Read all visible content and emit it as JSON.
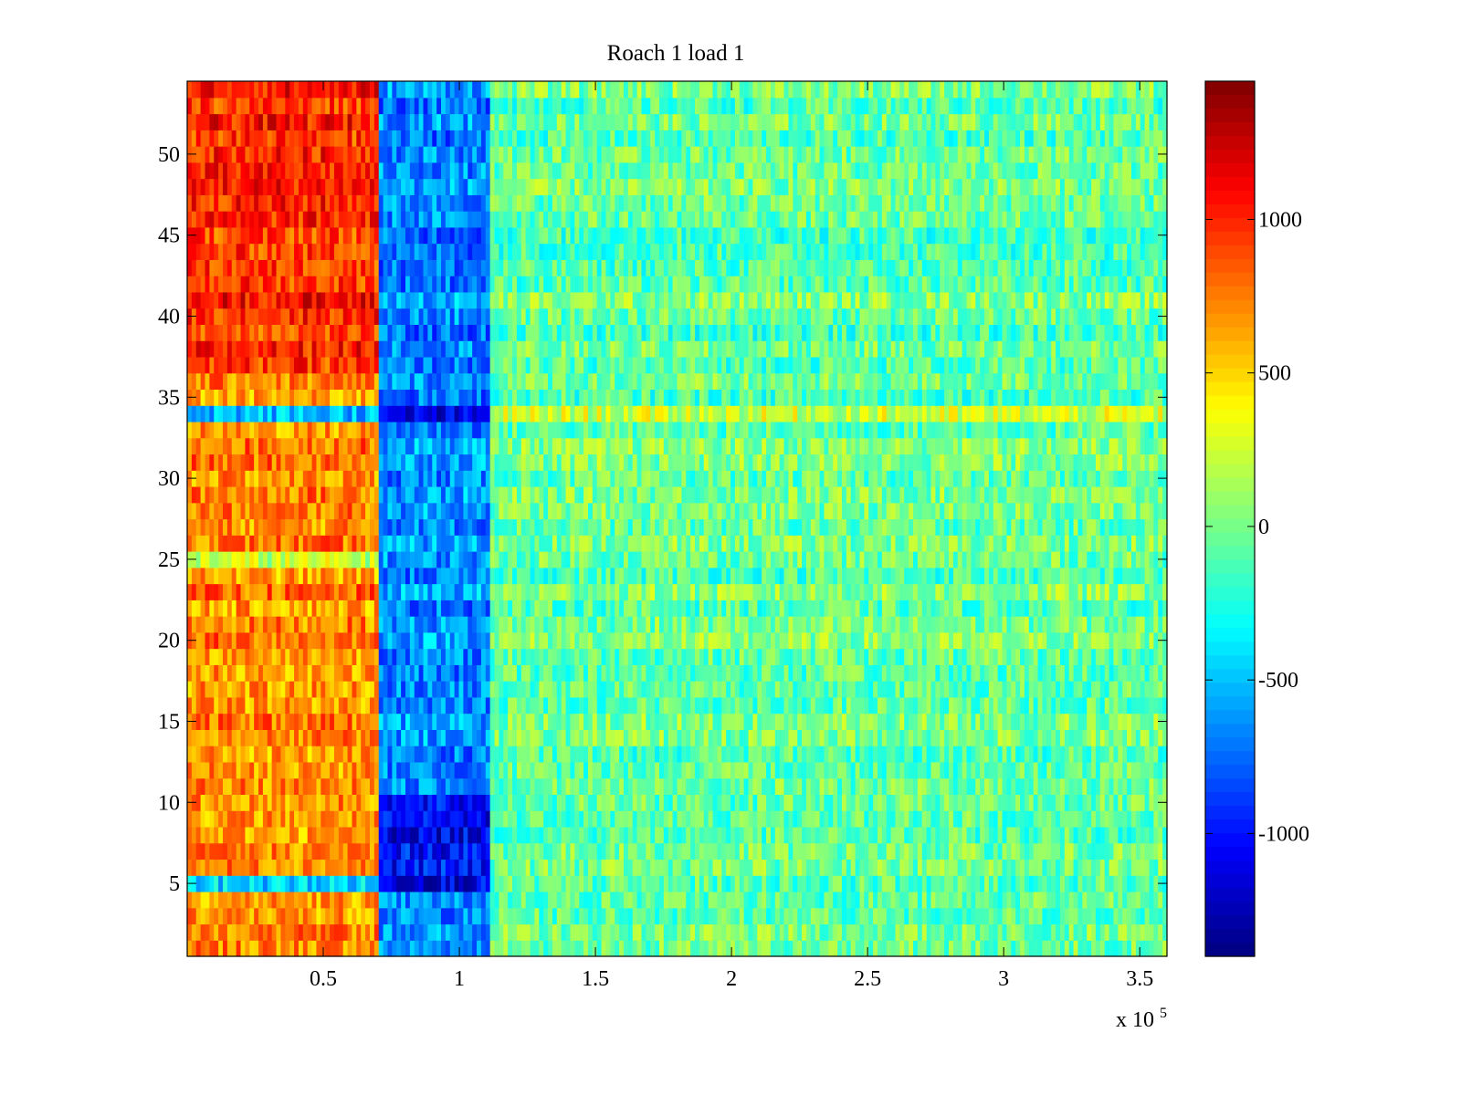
{
  "chart_data": {
    "type": "heatmap",
    "title": "Roach 1 load 1",
    "xlabel": "",
    "ylabel": "",
    "x_exponent_label": {
      "base": "x 10",
      "exponent": "5"
    },
    "xlim": [
      0,
      3.6
    ],
    "ylim": [
      0.5,
      54.5
    ],
    "x_ticks": [
      0.5,
      1,
      1.5,
      2,
      2.5,
      3,
      3.5
    ],
    "x_tick_labels": [
      "0.5",
      "1",
      "1.5",
      "2",
      "2.5",
      "3",
      "3.5"
    ],
    "y_ticks": [
      5,
      10,
      15,
      20,
      25,
      30,
      35,
      40,
      45,
      50
    ],
    "y_tick_labels": [
      "5",
      "10",
      "15",
      "20",
      "25",
      "30",
      "35",
      "40",
      "45",
      "50"
    ],
    "colorbar": {
      "colormap": "jet",
      "clim": [
        -1400,
        1450
      ],
      "ticks": [
        -1000,
        -500,
        0,
        500,
        1000
      ],
      "tick_labels": [
        "-1000",
        "-500",
        "0",
        "500",
        "1000"
      ]
    },
    "rows": 54,
    "regions": [
      {
        "x_range": [
          0,
          0.71
        ],
        "typical_value": 700,
        "description_value_high_rows": [
          37,
          54
        ],
        "high_value": 1000
      },
      {
        "x_range": [
          0.71,
          1.12
        ],
        "typical_value": -650,
        "low_rows": [
          5,
          10
        ],
        "low_value": -1050
      },
      {
        "x_range": [
          1.12,
          3.6
        ],
        "typical_value": -50
      }
    ],
    "row_overrides": [
      {
        "row": 34,
        "x_range": [
          0,
          0.71
        ],
        "value": -500
      },
      {
        "row": 34,
        "x_range": [
          0.71,
          1.12
        ],
        "value": -1150
      },
      {
        "row": 34,
        "x_range": [
          1.12,
          3.6
        ],
        "value": 250
      },
      {
        "row": 5,
        "x_range": [
          0,
          0.71
        ],
        "value": -400
      },
      {
        "row": 25,
        "x_range": [
          0,
          0.71
        ],
        "value": 200
      }
    ],
    "grid": false,
    "legend": "none"
  },
  "colors": {
    "axis": "#000000",
    "background": "#ffffff"
  }
}
